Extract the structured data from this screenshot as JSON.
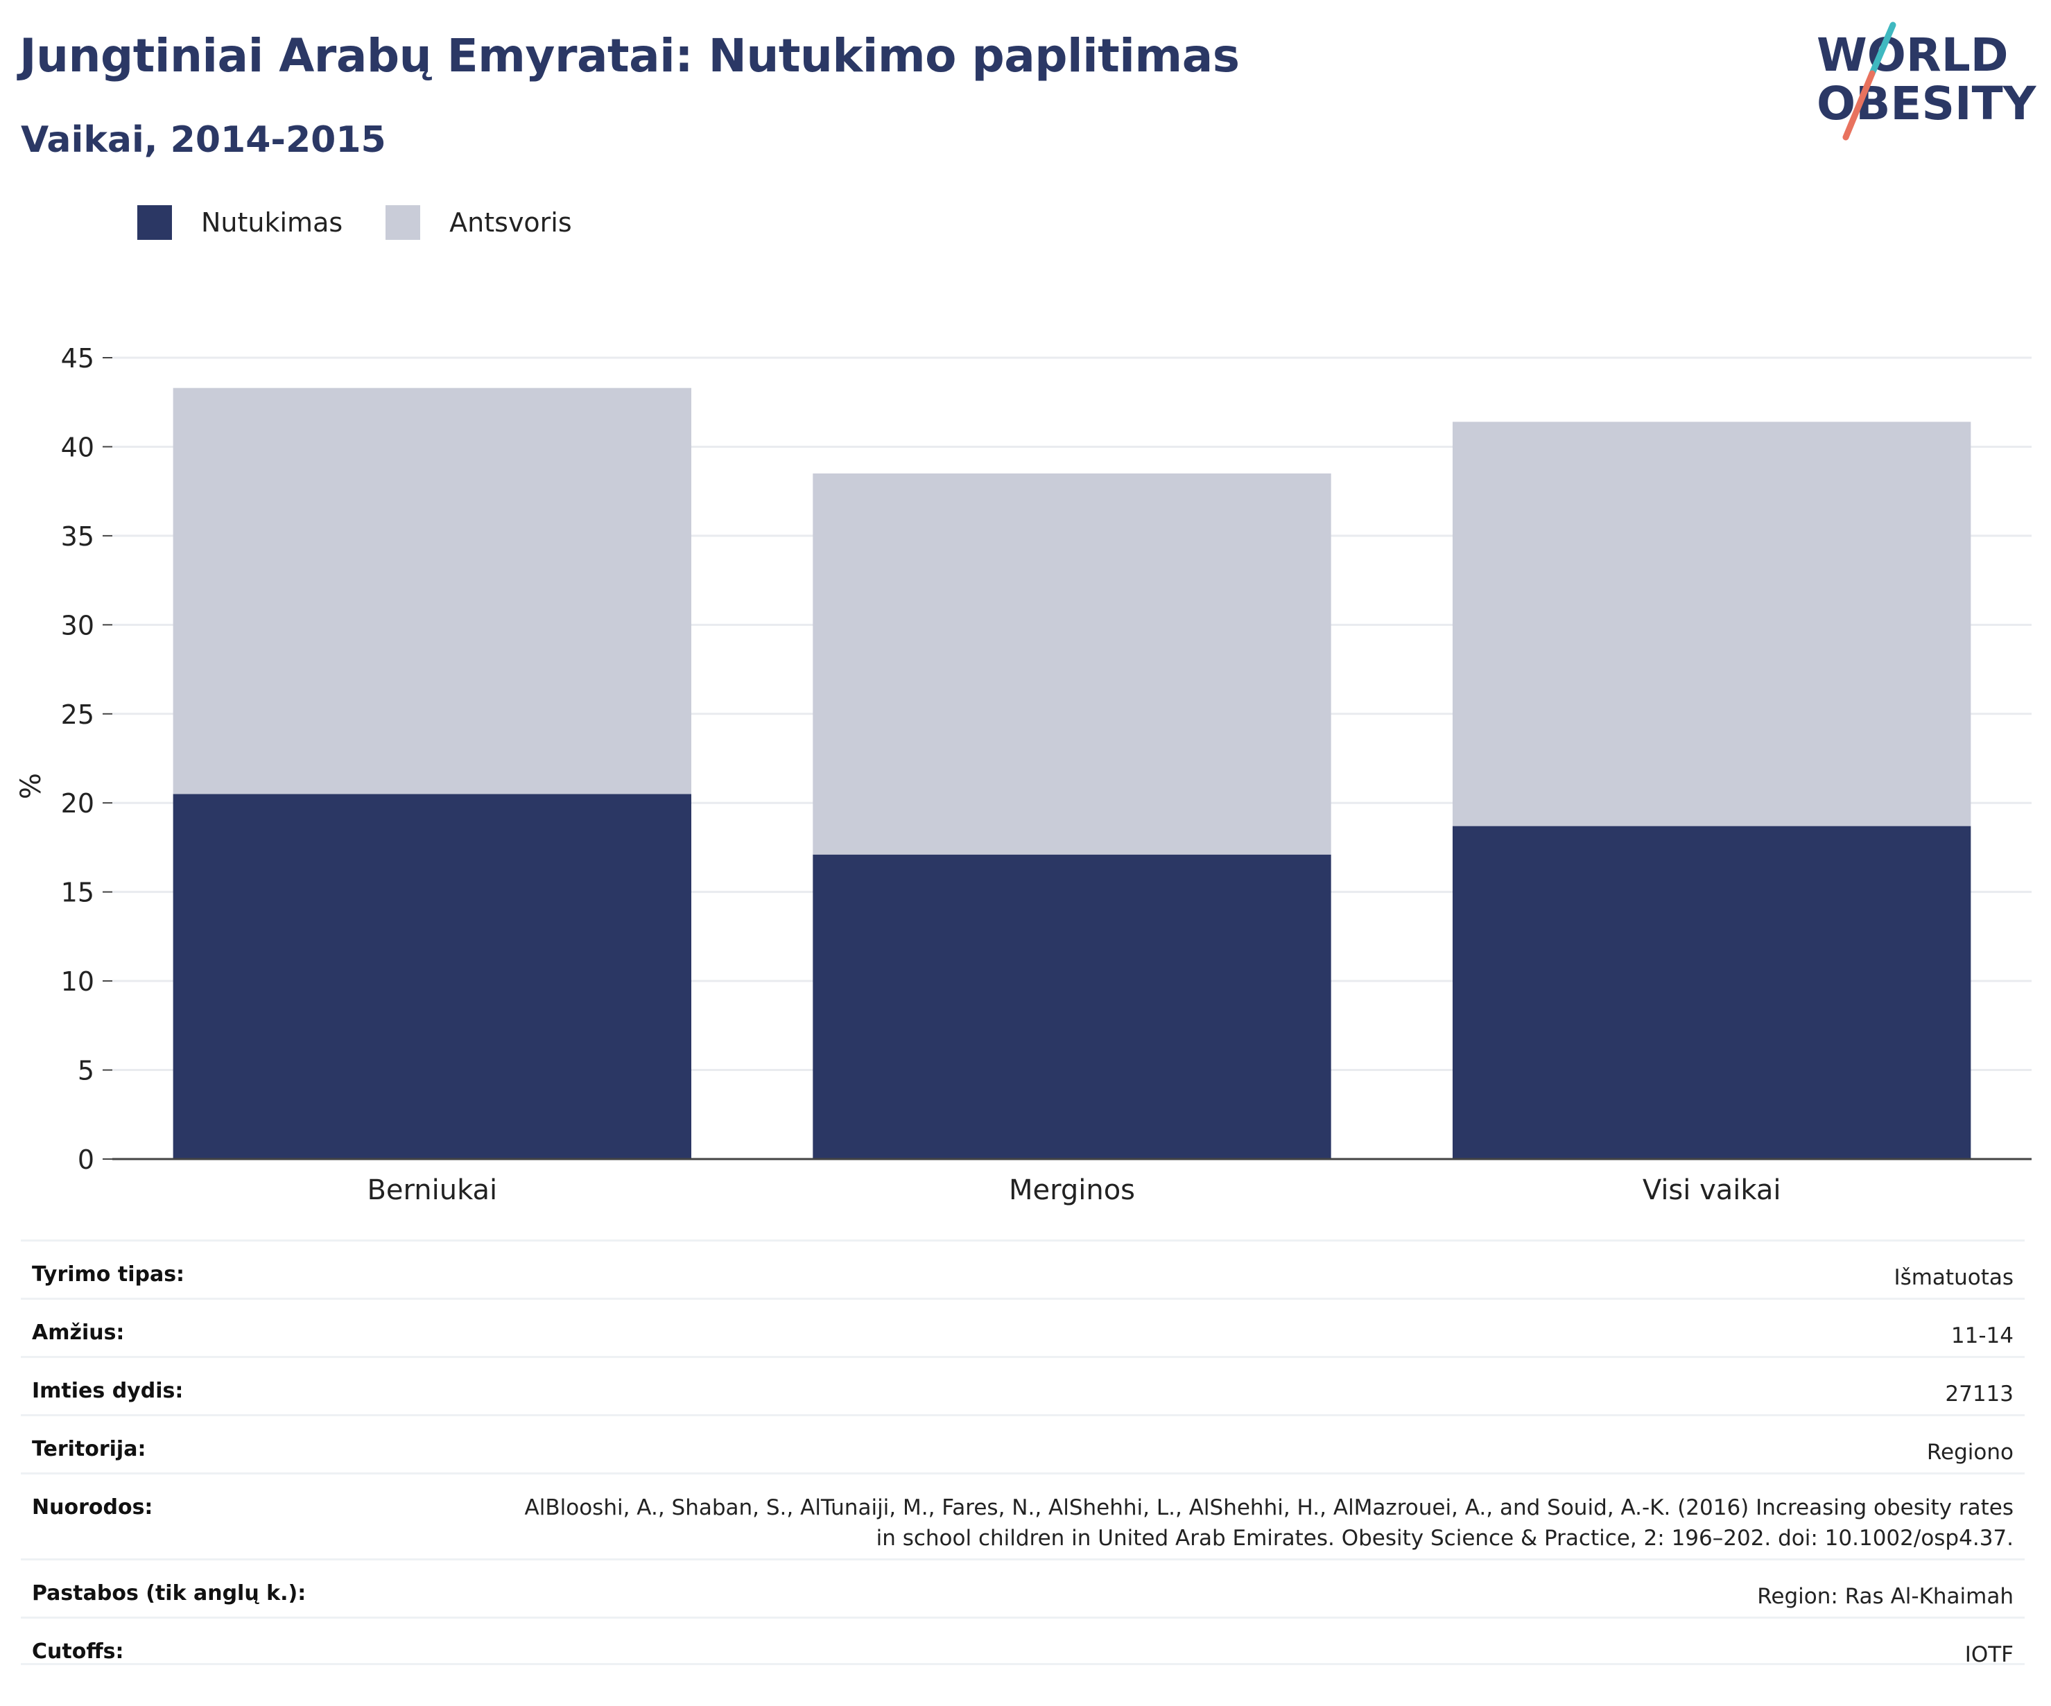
{
  "header": {
    "title": "Jungtiniai Arabų Emyratai: Nutukimo paplitimas",
    "subtitle": "Vaikai, 2014-2015"
  },
  "logo": {
    "line1": "WORLD",
    "line2": "OBESITY"
  },
  "colors": {
    "obesity": "#2b3764",
    "overweight": "#c9ccd8",
    "text": "#2b3865",
    "logo_teal": "#3fb8c0",
    "logo_coral": "#e8725e"
  },
  "chart_data": {
    "type": "bar",
    "stacked": true,
    "categories": [
      "Berniukai",
      "Merginos",
      "Visi vaikai"
    ],
    "series": [
      {
        "name": "Nutukimas",
        "values": [
          20.5,
          17.1,
          18.7
        ]
      },
      {
        "name": "Antsvoris",
        "values": [
          22.8,
          21.4,
          22.7
        ]
      }
    ],
    "xlabel": "",
    "ylabel": "%",
    "ylim": [
      0,
      45
    ],
    "yticks": [
      0,
      5,
      10,
      15,
      20,
      25,
      30,
      35,
      40,
      45
    ],
    "grid": true,
    "legend_position": "top-left"
  },
  "details": [
    {
      "label": "Tyrimo tipas:",
      "value": "Išmatuotas"
    },
    {
      "label": "Amžius:",
      "value": "11-14"
    },
    {
      "label": "Imties dydis:",
      "value": "27113"
    },
    {
      "label": "Teritorija:",
      "value": "Regiono"
    },
    {
      "label": "Nuorodos:",
      "value": "AlBlooshi, A., Shaban, S., AlTunaiji, M., Fares, N., AlShehhi, L., AlShehhi, H., AlMazrouei, A., and Souid, A.-K. (2016) Increasing obesity rates in school children in United Arab Emirates. Obesity Science & Practice, 2: 196–202. doi: 10.1002/osp4.37."
    },
    {
      "label": "Pastabos (tik anglų k.):",
      "value": "Region: Ras Al-Khaimah"
    },
    {
      "label": "Cutoffs:",
      "value": "IOTF"
    }
  ]
}
